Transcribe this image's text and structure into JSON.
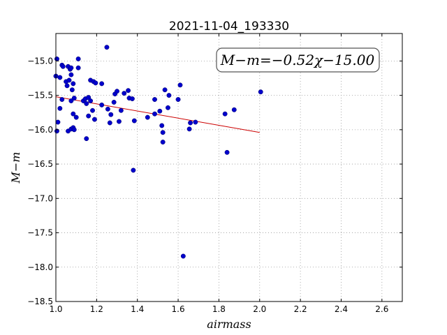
{
  "chart_data": {
    "type": "scatter",
    "title": "2021-11-04_193330",
    "xlabel": "airmass",
    "ylabel": "M−m",
    "annotation": "M−m=−0.52χ−15.00",
    "xlim": [
      1.0,
      2.7
    ],
    "ylim": [
      -18.5,
      -14.6
    ],
    "x_ticks": [
      "1.0",
      "1.2",
      "1.4",
      "1.6",
      "1.8",
      "2.0",
      "2.2",
      "2.4",
      "2.6"
    ],
    "x_tick_values": [
      1.0,
      1.2,
      1.4,
      1.6,
      1.8,
      2.0,
      2.2,
      2.4,
      2.6
    ],
    "y_ticks": [
      "−15.0",
      "−15.5",
      "−16.0",
      "−16.5",
      "−17.0",
      "−17.5",
      "−18.0",
      "−18.5"
    ],
    "y_tick_values": [
      -15.0,
      -15.5,
      -16.0,
      -16.5,
      -17.0,
      -17.5,
      -18.0,
      -18.5
    ],
    "grid": true,
    "colors": {
      "points": "#0000cc",
      "fit": "#cc0000"
    },
    "fit": {
      "slope": -0.52,
      "intercept": -15.0,
      "x_range": [
        1.0,
        2.0
      ]
    },
    "points": [
      {
        "x": 1.005,
        "y": -14.97
      },
      {
        "x": 1.0,
        "y": -15.22
      },
      {
        "x": 1.02,
        "y": -15.24
      },
      {
        "x": 1.03,
        "y": -15.06
      },
      {
        "x": 1.035,
        "y": -15.08
      },
      {
        "x": 1.06,
        "y": -15.08
      },
      {
        "x": 1.07,
        "y": -15.12
      },
      {
        "x": 1.075,
        "y": -15.1
      },
      {
        "x": 1.075,
        "y": -15.2
      },
      {
        "x": 1.05,
        "y": -15.3
      },
      {
        "x": 1.065,
        "y": -15.28
      },
      {
        "x": 1.055,
        "y": -15.36
      },
      {
        "x": 1.085,
        "y": -15.33
      },
      {
        "x": 1.08,
        "y": -15.42
      },
      {
        "x": 1.03,
        "y": -15.56
      },
      {
        "x": 1.02,
        "y": -15.69
      },
      {
        "x": 1.075,
        "y": -15.58
      },
      {
        "x": 1.09,
        "y": -15.54
      },
      {
        "x": 1.01,
        "y": -15.89
      },
      {
        "x": 1.005,
        "y": -16.02
      },
      {
        "x": 1.06,
        "y": -16.02
      },
      {
        "x": 1.075,
        "y": -15.99
      },
      {
        "x": 1.085,
        "y": -15.97
      },
      {
        "x": 1.09,
        "y": -16.0
      },
      {
        "x": 1.085,
        "y": -15.77
      },
      {
        "x": 1.1,
        "y": -15.82
      },
      {
        "x": 1.11,
        "y": -14.97
      },
      {
        "x": 1.11,
        "y": -15.1
      },
      {
        "x": 1.135,
        "y": -15.58
      },
      {
        "x": 1.145,
        "y": -15.55
      },
      {
        "x": 1.15,
        "y": -15.62
      },
      {
        "x": 1.16,
        "y": -15.53
      },
      {
        "x": 1.17,
        "y": -15.58
      },
      {
        "x": 1.17,
        "y": -15.28
      },
      {
        "x": 1.185,
        "y": -15.3
      },
      {
        "x": 1.195,
        "y": -15.32
      },
      {
        "x": 1.18,
        "y": -15.72
      },
      {
        "x": 1.19,
        "y": -15.85
      },
      {
        "x": 1.16,
        "y": -15.8
      },
      {
        "x": 1.15,
        "y": -16.13
      },
      {
        "x": 1.225,
        "y": -15.33
      },
      {
        "x": 1.225,
        "y": -15.64
      },
      {
        "x": 1.25,
        "y": -14.8
      },
      {
        "x": 1.255,
        "y": -15.7
      },
      {
        "x": 1.27,
        "y": -15.78
      },
      {
        "x": 1.265,
        "y": -15.9
      },
      {
        "x": 1.285,
        "y": -15.6
      },
      {
        "x": 1.29,
        "y": -15.48
      },
      {
        "x": 1.3,
        "y": -15.44
      },
      {
        "x": 1.31,
        "y": -15.88
      },
      {
        "x": 1.32,
        "y": -15.72
      },
      {
        "x": 1.335,
        "y": -15.47
      },
      {
        "x": 1.355,
        "y": -15.43
      },
      {
        "x": 1.36,
        "y": -15.54
      },
      {
        "x": 1.375,
        "y": -15.55
      },
      {
        "x": 1.38,
        "y": -16.59
      },
      {
        "x": 1.385,
        "y": -15.87
      },
      {
        "x": 1.45,
        "y": -15.82
      },
      {
        "x": 1.485,
        "y": -15.56
      },
      {
        "x": 1.485,
        "y": -15.77
      },
      {
        "x": 1.51,
        "y": -15.73
      },
      {
        "x": 1.52,
        "y": -15.94
      },
      {
        "x": 1.525,
        "y": -16.04
      },
      {
        "x": 1.525,
        "y": -16.18
      },
      {
        "x": 1.535,
        "y": -15.42
      },
      {
        "x": 1.55,
        "y": -15.68
      },
      {
        "x": 1.555,
        "y": -15.5
      },
      {
        "x": 1.6,
        "y": -15.56
      },
      {
        "x": 1.61,
        "y": -15.35
      },
      {
        "x": 1.625,
        "y": -17.84
      },
      {
        "x": 1.655,
        "y": -15.99
      },
      {
        "x": 1.66,
        "y": -15.9
      },
      {
        "x": 1.685,
        "y": -15.89
      },
      {
        "x": 1.83,
        "y": -15.77
      },
      {
        "x": 1.84,
        "y": -16.33
      },
      {
        "x": 1.875,
        "y": -15.71
      },
      {
        "x": 2.005,
        "y": -15.45
      }
    ]
  }
}
